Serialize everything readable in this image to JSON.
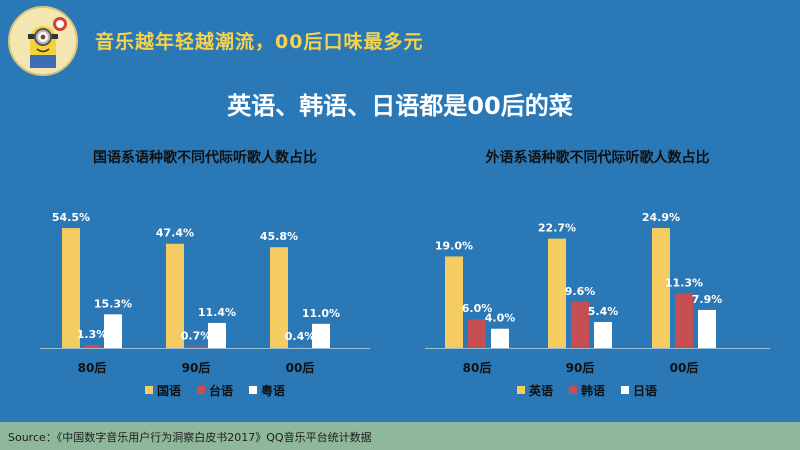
{
  "header": {
    "title": "音乐越年轻越潮流，00后口味最多元"
  },
  "main": {
    "title": "英语、韩语、日语都是00后的菜"
  },
  "footer": {
    "source": "Source：《中国数字音乐用户行为洞察白皮书2017》QQ音乐平台统计数据"
  },
  "colors": {
    "background": "#2a78b6",
    "yellow": "#f5cc62",
    "red": "#c44e52",
    "white": "#ffffff",
    "header_yellow": "#f6d24c"
  },
  "chart_data": [
    {
      "type": "bar",
      "title": "国语系语种歌不同代际听歌人数占比",
      "categories": [
        "80后",
        "90后",
        "00后"
      ],
      "series": [
        {
          "name": "国语",
          "color": "#f5cc62",
          "values": [
            54.5,
            47.4,
            45.8
          ],
          "labels": [
            "54.5%",
            "47.4%",
            "45.8%"
          ]
        },
        {
          "name": "台语",
          "color": "#c44e52",
          "values": [
            1.3,
            0.7,
            0.4
          ],
          "labels": [
            "1.3%",
            "0.7%",
            "0.4%"
          ]
        },
        {
          "name": "粤语",
          "color": "#ffffff",
          "values": [
            15.3,
            11.4,
            11.0
          ],
          "labels": [
            "15.3%",
            "11.4%",
            "11.0%"
          ]
        }
      ],
      "ylim": [
        0,
        60
      ],
      "legend": "bottom",
      "grid": false
    },
    {
      "type": "bar",
      "title": "外语系语种歌不同代际听歌人数占比",
      "categories": [
        "80后",
        "90后",
        "00后"
      ],
      "series": [
        {
          "name": "英语",
          "color": "#f5cc62",
          "values": [
            19.0,
            22.7,
            24.9
          ],
          "labels": [
            "19.0%",
            "22.7%",
            "24.9%"
          ]
        },
        {
          "name": "韩语",
          "color": "#c44e52",
          "values": [
            6.0,
            9.6,
            11.3
          ],
          "labels": [
            "6.0%",
            "9.6%",
            "11.3%"
          ]
        },
        {
          "name": "日语",
          "color": "#ffffff",
          "values": [
            4.0,
            5.4,
            7.9
          ],
          "labels": [
            "4.0%",
            "5.4%",
            "7.9%"
          ]
        }
      ],
      "ylim": [
        0,
        27.4
      ],
      "legend": "bottom",
      "grid": false
    }
  ]
}
